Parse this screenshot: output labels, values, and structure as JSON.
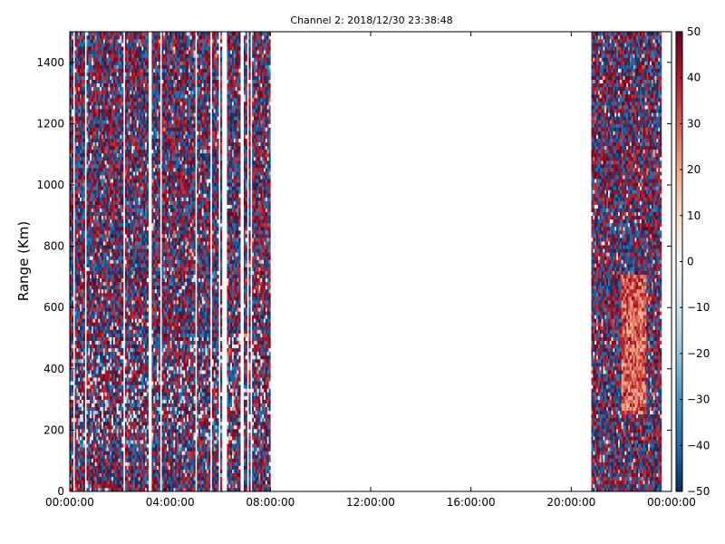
{
  "chart_data": {
    "type": "heatmap",
    "title": "Channel 2: 2018/12/30 23:38:48",
    "ylabel": "Range (Km)",
    "xlabel": "",
    "x_tick_labels": [
      "00:00:00",
      "04:00:00",
      "08:00:00",
      "12:00:00",
      "16:00:00",
      "20:00:00",
      "00:00:00"
    ],
    "x_ticks_hours": [
      0,
      4,
      8,
      12,
      16,
      20,
      24
    ],
    "xlim_hours": [
      0,
      24
    ],
    "y_ticks": [
      0,
      200,
      400,
      600,
      800,
      1000,
      1200,
      1400
    ],
    "ylim": [
      0,
      1500
    ],
    "colorbar": {
      "ticks": [
        -50,
        -40,
        -30,
        -20,
        -10,
        0,
        10,
        20,
        30,
        40,
        50
      ],
      "range": [
        -50,
        50
      ],
      "colormap": "RdBu_r",
      "colors": [
        "#053061",
        "#2166ac",
        "#4393c3",
        "#92c5de",
        "#d1e5f0",
        "#f7f7f7",
        "#fddbc7",
        "#f4a582",
        "#d6604d",
        "#b2182b",
        "#67001f"
      ]
    },
    "data_segments_hours": [
      [
        0.0,
        8.0
      ],
      [
        20.8,
        23.6
      ]
    ],
    "empty_interval_hours": [
      8.0,
      20.8
    ],
    "notes_visible": {
      "late_segment_feature": "coherent positive band near 22.0-23.0 h between ~250 and ~700 Km"
    }
  }
}
